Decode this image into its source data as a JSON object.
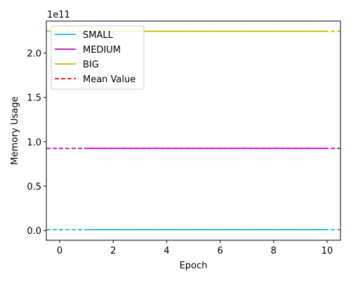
{
  "chart_data": {
    "type": "line",
    "title": "",
    "xlabel": "Epoch",
    "ylabel": "Memory Usage",
    "y_scale_label": "1e11",
    "xlim": [
      -0.5,
      10.5
    ],
    "ylim": [
      -0.11,
      2.36
    ],
    "x_ticks": [
      0,
      2,
      4,
      6,
      8,
      10
    ],
    "y_ticks": [
      0.0,
      0.5,
      1.0,
      1.5,
      2.0
    ],
    "y_tick_labels": [
      "0.0",
      "0.5",
      "1.0",
      "1.5",
      "2.0"
    ],
    "x_tick_labels": [
      "0",
      "2",
      "4",
      "6",
      "8",
      "10"
    ],
    "grid": false,
    "legend_position": "top-left",
    "series": [
      {
        "name": "SMALL",
        "color": "#17becf",
        "x": [
          1,
          2,
          3,
          4,
          5,
          6,
          7,
          8,
          9,
          10
        ],
        "values": [
          0.01,
          0.01,
          0.01,
          0.01,
          0.01,
          0.01,
          0.01,
          0.01,
          0.01,
          0.01
        ],
        "mean": 0.01
      },
      {
        "name": "MEDIUM",
        "color": "#bf00bf",
        "x": [
          1,
          2,
          3,
          4,
          5,
          6,
          7,
          8,
          9,
          10
        ],
        "values": [
          0.925,
          0.925,
          0.925,
          0.925,
          0.925,
          0.925,
          0.925,
          0.925,
          0.925,
          0.925
        ],
        "mean": 0.925
      },
      {
        "name": "BIG",
        "color": "#bfbf00",
        "x": [
          1,
          2,
          3,
          4,
          5,
          6,
          7,
          8,
          9,
          10
        ],
        "values": [
          2.245,
          2.245,
          2.245,
          2.245,
          2.245,
          2.245,
          2.245,
          2.245,
          2.245,
          2.245
        ],
        "mean": 2.245
      }
    ],
    "mean_legend": {
      "name": "Mean Value",
      "color": "#ff0000"
    }
  }
}
